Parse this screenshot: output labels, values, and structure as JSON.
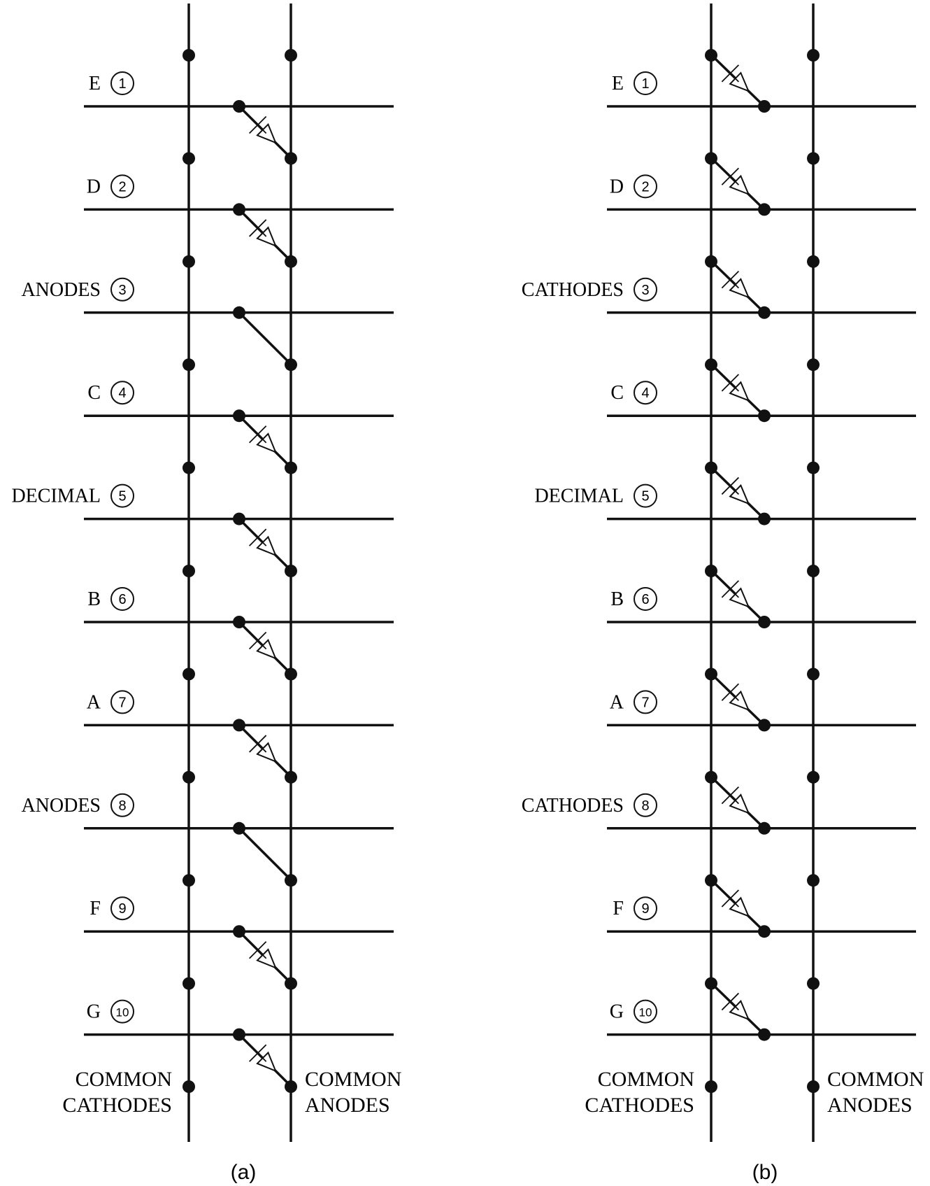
{
  "panels": [
    {
      "id": "a",
      "caption": "(a)",
      "rows": [
        {
          "pin": "1",
          "name": "E",
          "diode": true
        },
        {
          "pin": "2",
          "name": "D",
          "diode": true
        },
        {
          "pin": "3",
          "name": "ANODES",
          "diode": false
        },
        {
          "pin": "4",
          "name": "C",
          "diode": true
        },
        {
          "pin": "5",
          "name": "DECIMAL",
          "diode": true
        },
        {
          "pin": "6",
          "name": "B",
          "diode": true
        },
        {
          "pin": "7",
          "name": "A",
          "diode": true
        },
        {
          "pin": "8",
          "name": "ANODES",
          "diode": false
        },
        {
          "pin": "9",
          "name": "F",
          "diode": true
        },
        {
          "pin": "10",
          "name": "G",
          "diode": true
        }
      ],
      "bottom_left_label": [
        "COMMON",
        "CATHODES"
      ],
      "bottom_right_label": [
        "COMMON",
        "ANODES"
      ]
    },
    {
      "id": "b",
      "caption": "(b)",
      "rows": [
        {
          "pin": "1",
          "name": "E",
          "diode": true
        },
        {
          "pin": "2",
          "name": "D",
          "diode": true
        },
        {
          "pin": "3",
          "name": "CATHODES",
          "diode": true
        },
        {
          "pin": "4",
          "name": "C",
          "diode": true
        },
        {
          "pin": "5",
          "name": "DECIMAL",
          "diode": true
        },
        {
          "pin": "6",
          "name": "B",
          "diode": true
        },
        {
          "pin": "7",
          "name": "A",
          "diode": true
        },
        {
          "pin": "8",
          "name": "CATHODES",
          "diode": true
        },
        {
          "pin": "9",
          "name": "F",
          "diode": true
        },
        {
          "pin": "10",
          "name": "G",
          "diode": true
        }
      ],
      "bottom_left_label": [
        "COMMON",
        "CATHODES"
      ],
      "bottom_right_label": [
        "COMMON",
        "ANODES"
      ]
    }
  ]
}
